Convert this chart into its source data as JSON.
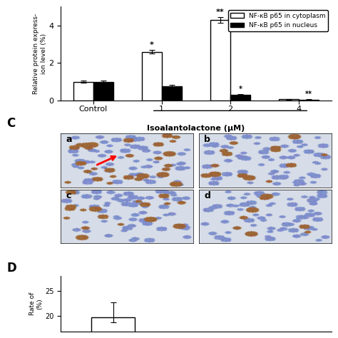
{
  "bar_groups": [
    "Control",
    "1",
    "2",
    "4"
  ],
  "cytoplasm_values": [
    1.0,
    2.6,
    4.3,
    0.05
  ],
  "cytoplasm_errors": [
    0.05,
    0.1,
    0.15,
    0.02
  ],
  "nucleus_values": [
    1.0,
    0.75,
    0.28,
    0.04
  ],
  "nucleus_errors": [
    0.05,
    0.08,
    0.07,
    0.02
  ],
  "ylabel": "Relative protein express-\nion level (%)",
  "xlabel_bottom": "Isoalantolactone (μM)",
  "ylim": [
    0,
    5.0
  ],
  "yticks": [
    0,
    2,
    4
  ],
  "legend_cytoplasm": "NF-κB p65 in cytoplasm",
  "legend_nucleus": "NF-κB p65 in nucleus",
  "sig_cytoplasm": [
    "",
    "*",
    "**",
    ""
  ],
  "sig_nucleus": [
    "",
    "",
    "*",
    "**"
  ],
  "panel_C_label": "C",
  "panel_D_label": "D",
  "panel_D_ylabel": "Rate of\n(%)",
  "panel_D_yticks": [
    20,
    25
  ],
  "bar_width": 0.35,
  "cytoplasm_color": "#ffffff",
  "cytoplasm_edge": "#000000",
  "nucleus_color": "#000000",
  "nucleus_edge": "#000000",
  "background_color": "#ffffff",
  "subplot_labels": [
    "a",
    "b",
    "c",
    "d"
  ]
}
